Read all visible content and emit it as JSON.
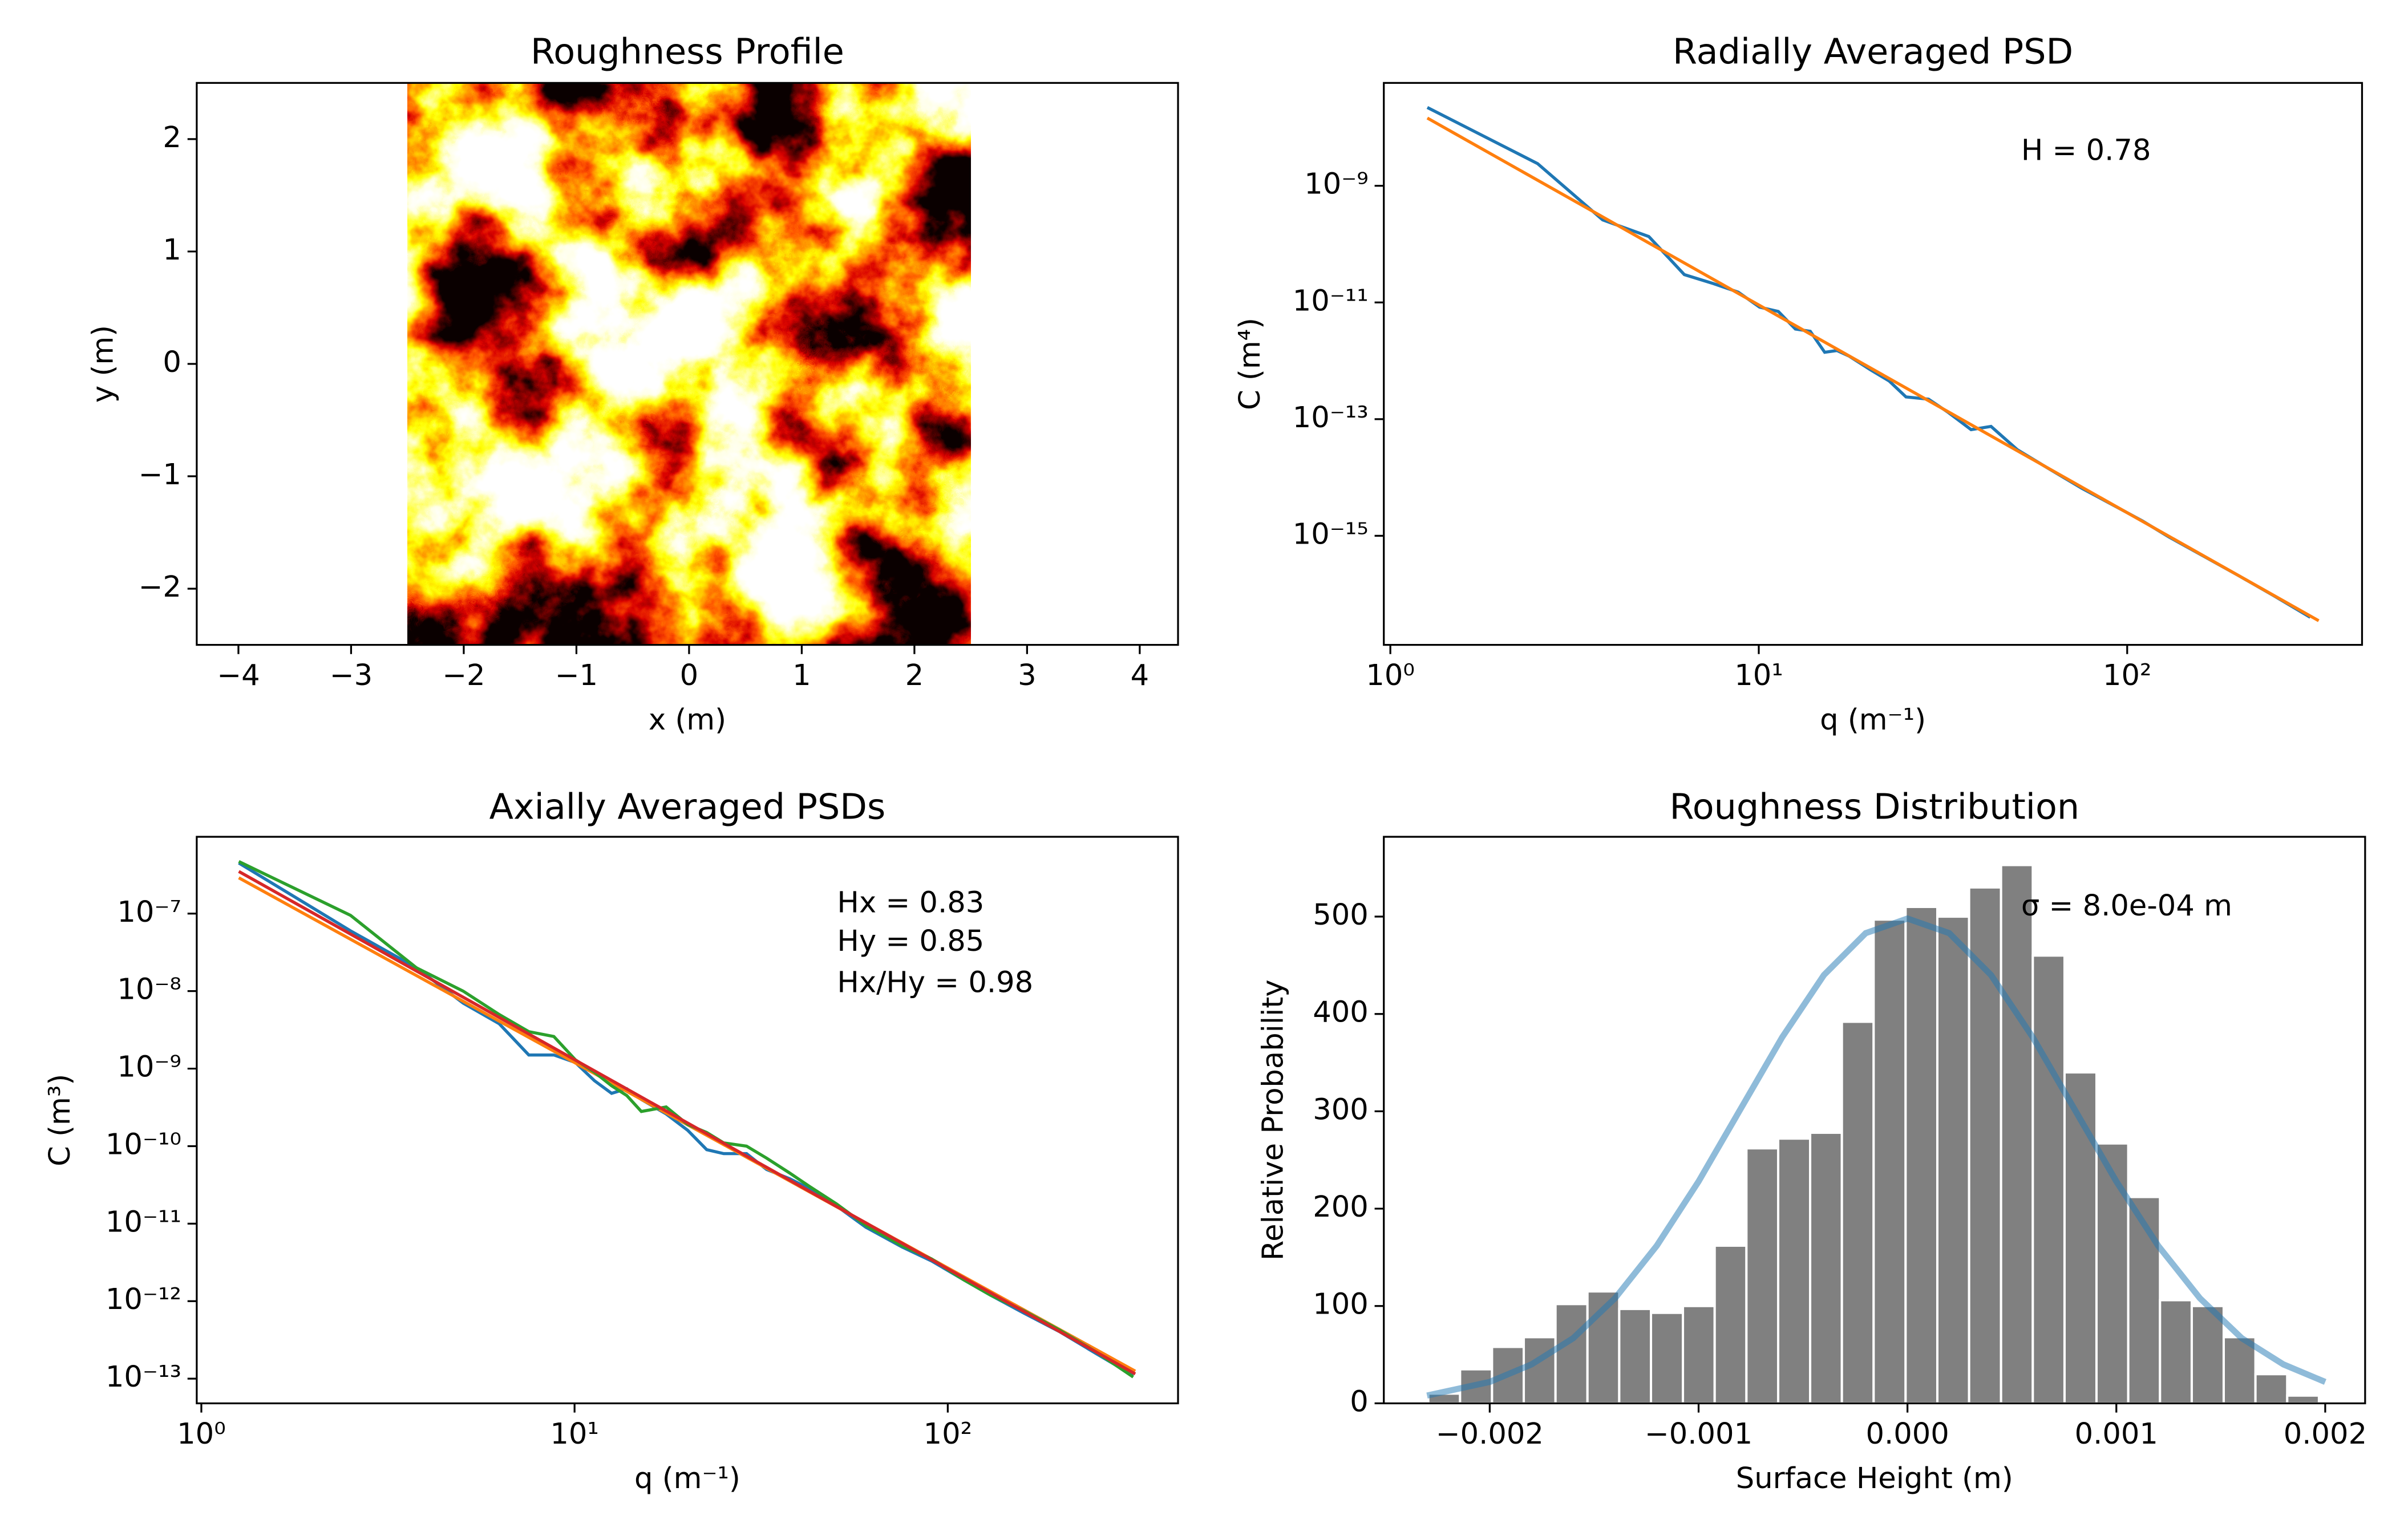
{
  "chart_data": [
    {
      "type": "image",
      "title": "Roughness Profile",
      "xlabel": "x (m)",
      "ylabel": "y (m)",
      "extent": [
        -2.5,
        2.5,
        -2.5,
        2.5
      ],
      "colormap": "hot",
      "xlim": [
        -4.37,
        4.34
      ],
      "ylim": [
        -2.5,
        2.5
      ],
      "xticks": [
        {
          "value": -4,
          "label": "−4"
        },
        {
          "value": -3,
          "label": "−3"
        },
        {
          "value": -2,
          "label": "−2"
        },
        {
          "value": -1,
          "label": "−1"
        },
        0,
        1,
        2,
        3,
        4
      ],
      "yticks": [
        {
          "value": -2,
          "label": "−2"
        },
        {
          "value": -1,
          "label": "−1"
        },
        0,
        1,
        2
      ]
    },
    {
      "type": "line",
      "title": "Radially Averaged PSD",
      "xlabel": "q (m⁻¹)",
      "ylabel": "C (m⁴)",
      "xscale": "log",
      "yscale": "log",
      "xlim": [
        0.96,
        434
      ],
      "ylim": [
        1.35e-17,
        5.8e-08
      ],
      "xticks": [
        {
          "value": 1,
          "label": "10⁰"
        },
        {
          "value": 10,
          "label": "10¹"
        },
        {
          "value": 100,
          "label": "10²"
        }
      ],
      "yticks": [
        {
          "value": 1e-15,
          "label": "10⁻¹⁵"
        },
        {
          "value": 1e-13,
          "label": "10⁻¹³"
        },
        {
          "value": 1e-11,
          "label": "10⁻¹¹"
        },
        {
          "value": 1e-09,
          "label": "10⁻⁹"
        }
      ],
      "annotations": [
        "H = 0.78"
      ],
      "series": [
        {
          "color": "#1f77b4",
          "x": [
            1.26,
            2.51,
            3.77,
            5.03,
            6.28,
            7.54,
            8.8,
            10.05,
            11.3,
            12.57,
            13.8,
            15.1,
            16.3,
            17.6,
            20.1,
            22.6,
            25.1,
            28.9,
            32.7,
            37.7,
            42.7,
            50.3,
            60.3,
            75.4,
            90.5,
            110,
            130,
            160,
            200,
            250,
            314
          ],
          "values": [
            2.2e-08,
            2.4e-09,
            2.6e-10,
            1.35e-10,
            3e-11,
            2.1e-11,
            1.5e-11,
            8.3e-12,
            7e-12,
            3.5e-12,
            3.2e-12,
            1.4e-12,
            1.5e-12,
            1.2e-12,
            7e-13,
            4.5e-13,
            2.4e-13,
            2.2e-13,
            1.3e-13,
            6.6e-14,
            7.5e-14,
            3e-14,
            1.5e-14,
            6.5e-15,
            3.5e-15,
            1.8e-15,
            9.5e-16,
            4.6e-16,
            2.1e-16,
            9.4e-17,
            4e-17
          ]
        },
        {
          "color": "#ff7f0e",
          "x": [
            1.26,
            331
          ],
          "values": [
            1.45e-08,
            3.5e-17
          ]
        }
      ]
    },
    {
      "type": "line",
      "title": "Axially Averaged PSDs",
      "xlabel": "q (m⁻¹)",
      "ylabel": "C (m³)",
      "xscale": "log",
      "yscale": "log",
      "xlim": [
        0.972,
        414
      ],
      "ylim": [
        4.8e-14,
        9.8e-07
      ],
      "xticks": [
        {
          "value": 1,
          "label": "10⁰"
        },
        {
          "value": 10,
          "label": "10¹"
        },
        {
          "value": 100,
          "label": "10²"
        }
      ],
      "yticks": [
        {
          "value": 1e-13,
          "label": "10⁻¹³"
        },
        {
          "value": 1e-12,
          "label": "10⁻¹²"
        },
        {
          "value": 1e-11,
          "label": "10⁻¹¹"
        },
        {
          "value": 1e-10,
          "label": "10⁻¹⁰"
        },
        {
          "value": 1e-09,
          "label": "10⁻⁹"
        },
        {
          "value": 1e-08,
          "label": "10⁻⁸"
        },
        {
          "value": 1e-07,
          "label": "10⁻⁷"
        }
      ],
      "annotations": [
        "Hx = 0.83",
        "Hy = 0.85",
        "Hx/Hy = 0.98"
      ],
      "series": [
        {
          "color": "#1f77b4",
          "x": [
            1.26,
            2.51,
            3.77,
            5.03,
            6.28,
            7.54,
            8.8,
            10.05,
            11.3,
            12.57,
            13.8,
            15.1,
            17.6,
            20.1,
            22.6,
            25.1,
            28.9,
            32.7,
            37.7,
            42.7,
            50.3,
            60.3,
            75.4,
            90.5,
            110,
            130,
            160,
            200,
            250,
            314
          ],
          "values": [
            4.5e-07,
            6e-08,
            2e-08,
            7e-09,
            3.8e-09,
            1.5e-09,
            1.5e-09,
            1.2e-09,
            7e-10,
            4.8e-10,
            5.5e-10,
            4e-10,
            2.6e-10,
            1.6e-10,
            9e-11,
            8e-11,
            8e-11,
            5e-11,
            3.8e-11,
            2.8e-11,
            1.7e-11,
            9e-12,
            5e-12,
            3.3e-12,
            1.9e-12,
            1.2e-12,
            7e-13,
            4e-13,
            2.1e-13,
            1.1e-13
          ]
        },
        {
          "color": "#ff7f0e",
          "x": [
            1.26,
            318
          ],
          "values": [
            2.9e-07,
            1.25e-13
          ]
        },
        {
          "color": "#2ca02c",
          "x": [
            1.26,
            2.51,
            3.77,
            5.03,
            6.28,
            7.54,
            8.8,
            10.05,
            11.3,
            12.57,
            13.8,
            15.1,
            17.6,
            20.1,
            22.6,
            25.1,
            28.9,
            32.7,
            37.7,
            42.7,
            50.3,
            60.3,
            75.4,
            90.5,
            110,
            130,
            160,
            200,
            250,
            314
          ],
          "values": [
            4.7e-07,
            9.5e-08,
            2e-08,
            1e-08,
            5e-09,
            3e-09,
            2.6e-09,
            1.3e-09,
            9e-10,
            6e-10,
            4.5e-10,
            2.8e-10,
            3.2e-10,
            1.9e-10,
            1.5e-10,
            1.1e-10,
            1e-10,
            7e-11,
            4.5e-11,
            3e-11,
            1.8e-11,
            9.5e-12,
            5.2e-12,
            3.5e-12,
            1.9e-12,
            1.2e-12,
            7.5e-13,
            4.2e-13,
            2.2e-13,
            1.05e-13
          ]
        },
        {
          "color": "#d62728",
          "x": [
            1.26,
            318
          ],
          "values": [
            3.5e-07,
            1.15e-13
          ]
        }
      ]
    },
    {
      "type": "histogram",
      "title": "Roughness Distribution",
      "xlabel": "Surface Height (m)",
      "ylabel": "Relative Probability",
      "xlim": [
        -0.002507,
        0.002191
      ],
      "ylim": [
        0,
        582
      ],
      "xticks": [
        {
          "value": -0.002,
          "label": "−0.002"
        },
        {
          "value": -0.001,
          "label": "−0.001"
        },
        {
          "value": 0,
          "label": "0.000"
        },
        {
          "value": 0.001,
          "label": "0.001"
        },
        {
          "value": 0.002,
          "label": "0.002"
        }
      ],
      "yticks": [
        0,
        100,
        200,
        300,
        400,
        500
      ],
      "annotations": [
        "σ = 8.0e-04 m"
      ],
      "color": "#808080",
      "bins": [
        -0.002294,
        -0.002142,
        -0.001989,
        -0.001837,
        -0.001685,
        -0.001532,
        -0.00138,
        -0.001228,
        -0.001075,
        -0.000923,
        -0.000771,
        -0.000619,
        -0.000466,
        -0.000314,
        -0.000162,
        -9e-06,
        0.000143,
        0.000295,
        0.000448,
        0.0006,
        0.000752,
        0.000905,
        0.001057,
        0.001209,
        0.001361,
        0.001514,
        0.001666,
        0.001818,
        0.00197
      ],
      "values": [
        10,
        35,
        58,
        68,
        102,
        115,
        97,
        93,
        100,
        162,
        262,
        272,
        278,
        392,
        497,
        510,
        500,
        530,
        553,
        460,
        340,
        267,
        212,
        106,
        100,
        68,
        30,
        8
      ],
      "curve": {
        "color": "#1f77b4",
        "opacity": 0.5,
        "x": [
          -0.0023,
          -0.002,
          -0.0018,
          -0.0016,
          -0.0014,
          -0.0012,
          -0.001,
          -0.0008,
          -0.0006,
          -0.0004,
          -0.0002,
          0,
          0.0002,
          0.0004,
          0.0006,
          0.0008,
          0.001,
          0.0012,
          0.0014,
          0.0016,
          0.0018,
          0.002
        ],
        "values": [
          8,
          22,
          40,
          67,
          108,
          162,
          228,
          302,
          376,
          440,
          483,
          498,
          483,
          440,
          376,
          302,
          228,
          162,
          108,
          67,
          40,
          22
        ]
      }
    }
  ]
}
